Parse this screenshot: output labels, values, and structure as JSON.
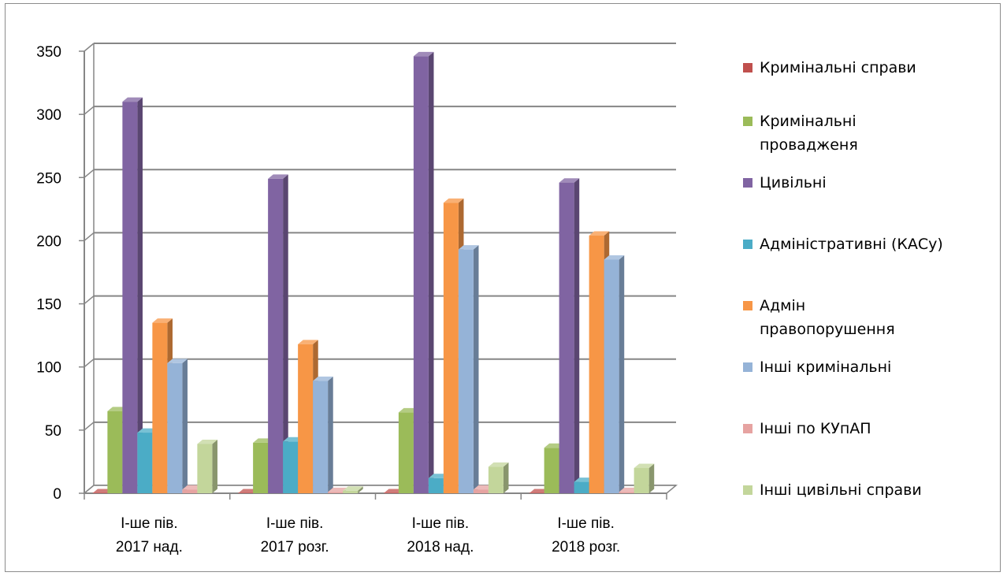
{
  "chart_data": {
    "type": "bar",
    "style": "3d-clustered-column",
    "categories": [
      [
        "І-ше пів.",
        "2017 над."
      ],
      [
        "І-ше пів.",
        "2017 розг."
      ],
      [
        "І-ше пів.",
        "2018 над."
      ],
      [
        "І-ше пів.",
        "2018 розг."
      ]
    ],
    "ylim": [
      0,
      350
    ],
    "yticks": [
      0,
      50,
      100,
      150,
      200,
      250,
      300,
      350
    ],
    "grid": true,
    "legend_position": "right",
    "series": [
      {
        "name": "Кримінальні справи",
        "legend_lines": [
          "Кримінальні справи"
        ],
        "color": "#c0504d",
        "values": [
          0,
          0,
          0,
          0
        ]
      },
      {
        "name": "Кримінальні провадженя",
        "legend_lines": [
          "Кримінальні",
          "провадженя"
        ],
        "color": "#9bbb59",
        "values": [
          65,
          40,
          64,
          36
        ]
      },
      {
        "name": "Цивільні",
        "legend_lines": [
          "Цивільні"
        ],
        "color": "#8064a2",
        "values": [
          310,
          249,
          346,
          246
        ]
      },
      {
        "name": "Адміністративні (КАСу)",
        "legend_lines": [
          "Адміністративні (КАСу)"
        ],
        "color": "#4bacc6",
        "values": [
          48,
          41,
          12,
          9
        ]
      },
      {
        "name": "Адмін правопорушення",
        "legend_lines": [
          "Адмін",
          "правопорушення"
        ],
        "color": "#f79646",
        "values": [
          135,
          118,
          230,
          204
        ]
      },
      {
        "name": "Інші кримінальні",
        "legend_lines": [
          "Інші кримінальні"
        ],
        "color": "#95b3d7",
        "values": [
          103,
          89,
          193,
          185
        ]
      },
      {
        "name": "Інші по КУпАП",
        "legend_lines": [
          "Інші по КУпАП"
        ],
        "color": "#e6a3a1",
        "values": [
          3,
          1,
          3,
          1
        ]
      },
      {
        "name": "Інші цивільні справи",
        "legend_lines": [
          "Інші цивільні справи"
        ],
        "color": "#c3d69b",
        "values": [
          39,
          2,
          21,
          20
        ]
      }
    ]
  }
}
